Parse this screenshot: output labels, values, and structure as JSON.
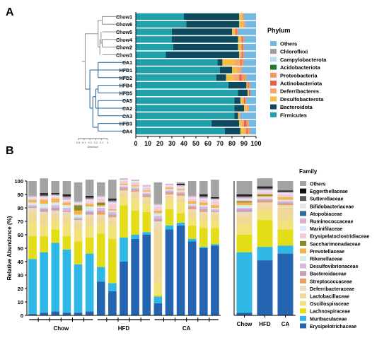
{
  "panel_labels": {
    "a": "A",
    "b": "B"
  },
  "colors": {
    "Firmicutes": "#1FA0AA",
    "Bacteroidota": "#0D4A5E",
    "Desulfobacterota": "#F3C043",
    "Deferribacteres": "#F7A96B",
    "Actinobacteriota": "#E8604C",
    "Proteobacteria": "#F39A5A",
    "Acidobacteriota": "#1F7A2E",
    "Campylobacterota": "#B9DCEF",
    "Chloroflexi": "#9E9E9E",
    "Others": "#74B9E2",
    "family": {
      "Others": "#A3A3A3",
      "Eggerthellaceae": "#111111",
      "Sutterellaceae": "#5A5A5A",
      "Bifidobacteriaceae": "#E6E6E6",
      "Atopobiaceae": "#2C6E9E",
      "Ruminococcaceae": "#D9AFD2",
      "Marinifilaceae": "#DCEAF6",
      "Erysipelatoclostridiaceae": "#F5C9D6",
      "Saccharimonadaceae": "#8A8A2A",
      "Prevotellaceae": "#F3B34A",
      "Rikenellaceae": "#D4ECEA",
      "Desulfovibrionaceae": "#D8B7E0",
      "Bacteroidaceae": "#C7A0B8",
      "Streptococcaceae": "#E8A060",
      "Deferribacteraceae": "#EADAB8",
      "Lactobacillaceae": "#F0D898",
      "Oscillospiraceae": "#F2E27A",
      "Lachnospiraceae": "#E3DD18",
      "Muribaculaceae": "#2FB8E5",
      "Erysipelotrichaceae": "#2564B0"
    }
  },
  "chart_data": [
    {
      "type": "bar",
      "orientation": "horizontal",
      "stacked": true,
      "categories": [
        "Chow1",
        "Chow6",
        "Chow5",
        "Chow4",
        "Chow2",
        "Chow3",
        "CA1",
        "HFD1",
        "HFD2",
        "HFD4",
        "HFD5",
        "CA5",
        "CA2",
        "CA3",
        "HFD3",
        "CA4"
      ],
      "xlim": [
        0,
        100
      ],
      "xticks": [
        "0",
        "10",
        "20",
        "30",
        "40",
        "50",
        "60",
        "70",
        "80",
        "90",
        "100"
      ],
      "legend_title": "Phylum",
      "legend": [
        "Others",
        "Chloroflexi",
        "Campylobacterota",
        "Acidobacteriota",
        "Proteobacteria",
        "Actinobacteriota",
        "Deferribacteres",
        "Desulfobacterota",
        "Bacteroidota",
        "Firmicutes"
      ],
      "dendrogram_label": "Distance",
      "dendrogram_ticks": [
        "0.5",
        "0.4",
        "0.3",
        "0.2",
        "0.1",
        "0"
      ],
      "series": [
        {
          "name": "Firmicutes",
          "values": [
            40,
            42,
            30,
            30,
            31,
            25,
            68,
            70,
            67,
            77,
            85,
            82,
            82,
            82,
            63,
            74
          ]
        },
        {
          "name": "Bacteroidota",
          "values": [
            46,
            44,
            50,
            55,
            54,
            61,
            4,
            10,
            8,
            15,
            8,
            5,
            8,
            3,
            23,
            13
          ]
        },
        {
          "name": "Desulfobacterota",
          "values": [
            2,
            3,
            2,
            2,
            2,
            1,
            10,
            4,
            6,
            1,
            1,
            2,
            2,
            1,
            2,
            3
          ]
        },
        {
          "name": "Deferribacteres",
          "values": [
            1,
            1,
            1,
            1,
            1,
            1,
            5,
            3,
            5,
            0,
            0,
            1,
            1,
            0,
            2,
            2
          ]
        },
        {
          "name": "Actinobacteriota",
          "values": [
            0,
            0,
            1,
            1,
            1,
            1,
            1,
            0,
            2,
            1,
            1,
            1,
            0,
            0,
            2,
            1
          ]
        },
        {
          "name": "Proteobacteria",
          "values": [
            1,
            1,
            1,
            1,
            1,
            1,
            2,
            1,
            4,
            1,
            0,
            1,
            1,
            1,
            2,
            2
          ]
        },
        {
          "name": "Acidobacteriota",
          "values": [
            0,
            0,
            0,
            0,
            0,
            0,
            0,
            0,
            0,
            0,
            0,
            0,
            0,
            0,
            0,
            0
          ]
        },
        {
          "name": "Campylobacterota",
          "values": [
            0,
            0,
            0,
            0,
            0,
            0,
            0,
            0,
            0,
            0,
            0,
            0,
            0,
            0,
            0,
            0
          ]
        },
        {
          "name": "Chloroflexi",
          "values": [
            0,
            0,
            0,
            0,
            0,
            0,
            0,
            0,
            0,
            0,
            0,
            0,
            0,
            0,
            0,
            0
          ]
        },
        {
          "name": "Others",
          "values": [
            10,
            9,
            15,
            10,
            10,
            10,
            10,
            12,
            8,
            5,
            5,
            8,
            6,
            13,
            6,
            5
          ]
        }
      ]
    },
    {
      "type": "bar",
      "stacked": true,
      "ylabel": "Relative Abundance (%)",
      "ylim": [
        0,
        100
      ],
      "yticks": [
        "0",
        "10",
        "20",
        "30",
        "40",
        "50",
        "60",
        "70",
        "80",
        "90",
        "100"
      ],
      "group_labels": [
        "Chow",
        "HFD",
        "CA"
      ],
      "bar_groups": [
        6,
        5,
        6
      ],
      "legend_title": "Family",
      "legend": [
        "Others",
        "Eggerthellaceae",
        "Sutterellaceae",
        "Bifidobacteriaceae",
        "Atopobiaceae",
        "Ruminococcaceae",
        "Marinifilaceae",
        "Erysipelatoclostridiaceae",
        "Saccharimonadaceae",
        "Prevotellaceae",
        "Rikenellaceae",
        "Desulfovibrionaceae",
        "Bacteroidaceae",
        "Streptococcaceae",
        "Deferribacteraceae",
        "Lactobacillaceae",
        "Oscillospiraceae",
        "Lachnospiraceae",
        "Muribaculaceae",
        "Erysipelotrichaceae"
      ],
      "series": [
        {
          "name": "Erysipelotrichaceae",
          "values": [
            1,
            2,
            3,
            2,
            2,
            3,
            25,
            18,
            40,
            57,
            60,
            9,
            64,
            67,
            55,
            50,
            52
          ]
        },
        {
          "name": "Muribaculaceae",
          "values": [
            41,
            45,
            51,
            47,
            36,
            43,
            11,
            6,
            18,
            3,
            2,
            5,
            3,
            2,
            2,
            1,
            1
          ]
        },
        {
          "name": "Lachnospiraceae",
          "values": [
            17,
            12,
            10,
            10,
            17,
            12,
            25,
            33,
            24,
            18,
            15,
            1,
            12,
            7,
            10,
            14,
            12
          ]
        },
        {
          "name": "Oscillospiraceae",
          "values": [
            10,
            8,
            6,
            9,
            9,
            8,
            7,
            10,
            6,
            8,
            6,
            10,
            7,
            8,
            6,
            6,
            6
          ]
        },
        {
          "name": "Lactobacillaceae",
          "values": [
            8,
            8,
            5,
            6,
            5,
            7,
            5,
            4,
            3,
            4,
            3,
            40,
            3,
            3,
            4,
            4,
            4
          ]
        },
        {
          "name": "Deferribacteraceae",
          "values": [
            3,
            2,
            3,
            3,
            2,
            2,
            2,
            2,
            2,
            2,
            2,
            5,
            1,
            2,
            2,
            2,
            2
          ]
        },
        {
          "name": "Streptococcaceae",
          "values": [
            0,
            0,
            0,
            0,
            0,
            0,
            2,
            1,
            1,
            1,
            1,
            0,
            1,
            1,
            1,
            1,
            0
          ]
        },
        {
          "name": "Bacteroidaceae",
          "values": [
            1,
            2,
            2,
            1,
            1,
            2,
            1,
            1,
            1,
            1,
            1,
            2,
            1,
            1,
            1,
            1,
            1
          ]
        },
        {
          "name": "Desulfovibrionaceae",
          "values": [
            1,
            1,
            2,
            2,
            1,
            1,
            2,
            2,
            1,
            1,
            1,
            2,
            1,
            1,
            1,
            2,
            1
          ]
        },
        {
          "name": "Rikenellaceae",
          "values": [
            2,
            3,
            2,
            2,
            2,
            3,
            1,
            1,
            1,
            1,
            1,
            2,
            1,
            1,
            1,
            1,
            1
          ]
        },
        {
          "name": "Prevotellaceae",
          "values": [
            2,
            3,
            3,
            2,
            3,
            2,
            1,
            1,
            1,
            1,
            1,
            2,
            1,
            1,
            2,
            2,
            2
          ]
        },
        {
          "name": "Saccharimonadaceae",
          "values": [
            0,
            0,
            0,
            0,
            4,
            0,
            2,
            0,
            0,
            0,
            0,
            0,
            0,
            0,
            0,
            0,
            0
          ]
        },
        {
          "name": "Erysipelatoclostridiaceae",
          "values": [
            1,
            1,
            1,
            1,
            1,
            2,
            3,
            4,
            2,
            2,
            2,
            3,
            1,
            1,
            2,
            2,
            3
          ]
        },
        {
          "name": "Marinifilaceae",
          "values": [
            1,
            1,
            1,
            1,
            1,
            1,
            1,
            1,
            1,
            1,
            1,
            1,
            1,
            1,
            1,
            1,
            1
          ]
        },
        {
          "name": "Ruminococcaceae",
          "values": [
            1,
            1,
            1,
            2,
            1,
            1,
            1,
            1,
            1,
            1,
            1,
            1,
            1,
            1,
            1,
            1,
            1
          ]
        },
        {
          "name": "Atopobiaceae",
          "values": [
            0,
            0,
            0,
            0,
            0,
            0,
            0,
            0,
            0,
            0,
            0,
            0,
            0,
            0,
            0,
            0,
            0
          ]
        },
        {
          "name": "Bifidobacteriaceae",
          "values": [
            0,
            0,
            0,
            0,
            0,
            0,
            0,
            0,
            0,
            0,
            0,
            0,
            0,
            0,
            0,
            0,
            0
          ]
        },
        {
          "name": "Sutterellaceae",
          "values": [
            0,
            1,
            0,
            1,
            0,
            1,
            0,
            1,
            0,
            0,
            0,
            0,
            0,
            0,
            0,
            1,
            0
          ]
        },
        {
          "name": "Eggerthellaceae",
          "values": [
            0,
            1,
            1,
            1,
            0,
            1,
            0,
            1,
            0,
            0,
            0,
            0,
            0,
            1,
            0,
            1,
            1
          ]
        },
        {
          "name": "Others",
          "values": [
            11,
            11,
            9,
            10,
            14,
            12,
            10,
            14,
            0,
            0,
            0,
            16,
            0,
            1,
            11,
            10,
            13
          ]
        }
      ]
    },
    {
      "type": "bar",
      "stacked": true,
      "categories": [
        "Chow",
        "HFD",
        "CA"
      ],
      "ylim": [
        0,
        100
      ],
      "series": [
        {
          "name": "Erysipelotrichaceae",
          "values": [
            2,
            41,
            46
          ]
        },
        {
          "name": "Muribaculaceae",
          "values": [
            45,
            10,
            6
          ]
        },
        {
          "name": "Lachnospiraceae",
          "values": [
            13,
            20,
            12
          ]
        },
        {
          "name": "Oscillospiraceae",
          "values": [
            8,
            7,
            7
          ]
        },
        {
          "name": "Lactobacillaceae",
          "values": [
            6,
            4,
            9
          ]
        },
        {
          "name": "Deferribacteraceae",
          "values": [
            3,
            2,
            2
          ]
        },
        {
          "name": "Streptococcaceae",
          "values": [
            0,
            1,
            1
          ]
        },
        {
          "name": "Bacteroidaceae",
          "values": [
            2,
            1,
            1
          ]
        },
        {
          "name": "Desulfovibrionaceae",
          "values": [
            1,
            1,
            1
          ]
        },
        {
          "name": "Rikenellaceae",
          "values": [
            2,
            1,
            1
          ]
        },
        {
          "name": "Prevotellaceae",
          "values": [
            2,
            1,
            2
          ]
        },
        {
          "name": "Saccharimonadaceae",
          "values": [
            1,
            1,
            0
          ]
        },
        {
          "name": "Erysipelatoclostridiaceae",
          "values": [
            1,
            2,
            2
          ]
        },
        {
          "name": "Marinifilaceae",
          "values": [
            1,
            1,
            1
          ]
        },
        {
          "name": "Ruminococcaceae",
          "values": [
            1,
            1,
            1
          ]
        },
        {
          "name": "Atopobiaceae",
          "values": [
            0,
            0,
            0
          ]
        },
        {
          "name": "Bifidobacteriaceae",
          "values": [
            0,
            0,
            0
          ]
        },
        {
          "name": "Sutterellaceae",
          "values": [
            1,
            1,
            0
          ]
        },
        {
          "name": "Eggerthellaceae",
          "values": [
            1,
            1,
            1
          ]
        },
        {
          "name": "Others",
          "values": [
            10,
            6,
            7
          ]
        }
      ]
    }
  ]
}
